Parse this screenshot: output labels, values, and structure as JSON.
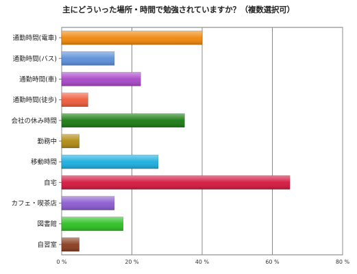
{
  "chart_data": {
    "type": "bar",
    "orientation": "horizontal",
    "title": "主にどういった場所・時間で勉強されていますか？（複数選択可）",
    "categories": [
      "通勤時間(電車)",
      "通勤時間(バス)",
      "通勤時間(車)",
      "通勤時間(徒歩)",
      "会社の休み時間",
      "勤務中",
      "移動時間",
      "自宅",
      "カフェ・喫茶店",
      "図書館",
      "自習室"
    ],
    "values": [
      40,
      15,
      22.5,
      7.5,
      35,
      5,
      27.5,
      65,
      15,
      17.5,
      5
    ],
    "colors": [
      "#f0870a",
      "#5b8fd9",
      "#a847c8",
      "#ef5a3a",
      "#1a7a12",
      "#b08a10",
      "#1aaee0",
      "#d4163c",
      "#8a5ad0",
      "#2cc022",
      "#8a3b1e"
    ],
    "xlim": [
      0,
      80
    ],
    "xticks": [
      0,
      20,
      40,
      60,
      80
    ],
    "xtick_labels": [
      "0 %",
      "20 %",
      "40 %",
      "60 %",
      "80 %"
    ],
    "grid": true,
    "xlabel": "",
    "ylabel": ""
  }
}
